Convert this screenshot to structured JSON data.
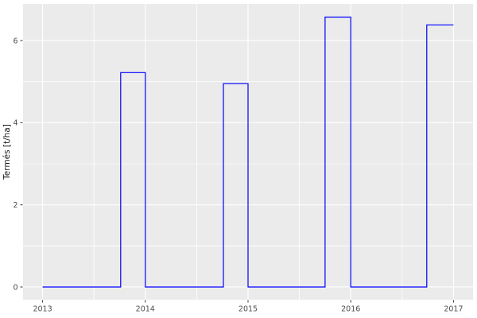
{
  "chart_data": {
    "type": "line",
    "subtype": "step",
    "title": "",
    "xlabel": "",
    "ylabel": "Termés [t/ha]",
    "x_ticks": [
      2013,
      2014,
      2015,
      2016,
      2017
    ],
    "x_tick_labels": [
      "2013",
      "2014",
      "2015",
      "2016",
      "2017"
    ],
    "y_ticks": [
      0,
      2,
      4,
      6
    ],
    "y_tick_labels": [
      "0",
      "2",
      "4",
      "6"
    ],
    "x_minor_ticks": [
      2013.5,
      2014.5,
      2015.5,
      2016.5
    ],
    "y_minor_ticks": [
      1,
      3,
      5
    ],
    "xlim": [
      2012.81,
      2017.19
    ],
    "ylim": [
      -0.31,
      6.89
    ],
    "grid": "on",
    "legend_position": "none",
    "series": [
      {
        "name": "Termés",
        "color": "#0000ff",
        "points": [
          [
            2013.0,
            0
          ],
          [
            2013.76,
            0
          ],
          [
            2013.76,
            5.22
          ],
          [
            2014.0,
            5.22
          ],
          [
            2014.0,
            0
          ],
          [
            2014.76,
            0
          ],
          [
            2014.76,
            4.95
          ],
          [
            2015.0,
            4.95
          ],
          [
            2015.0,
            0
          ],
          [
            2015.75,
            0
          ],
          [
            2015.75,
            6.57
          ],
          [
            2016.0,
            6.57
          ],
          [
            2016.0,
            0
          ],
          [
            2016.74,
            0
          ],
          [
            2016.74,
            6.38
          ],
          [
            2017.0,
            6.38
          ]
        ]
      }
    ],
    "pulse_values": [
      5.22,
      4.95,
      6.57,
      6.38
    ],
    "colors": {
      "panel_background": "#ebebeb",
      "grid_major": "#ffffff",
      "grid_minor": "#ffffff",
      "tick_mark": "#333333",
      "tick_label": "#4d4d4d",
      "axis_title": "#1a1a1a",
      "outer_background": "#ffffff"
    }
  }
}
